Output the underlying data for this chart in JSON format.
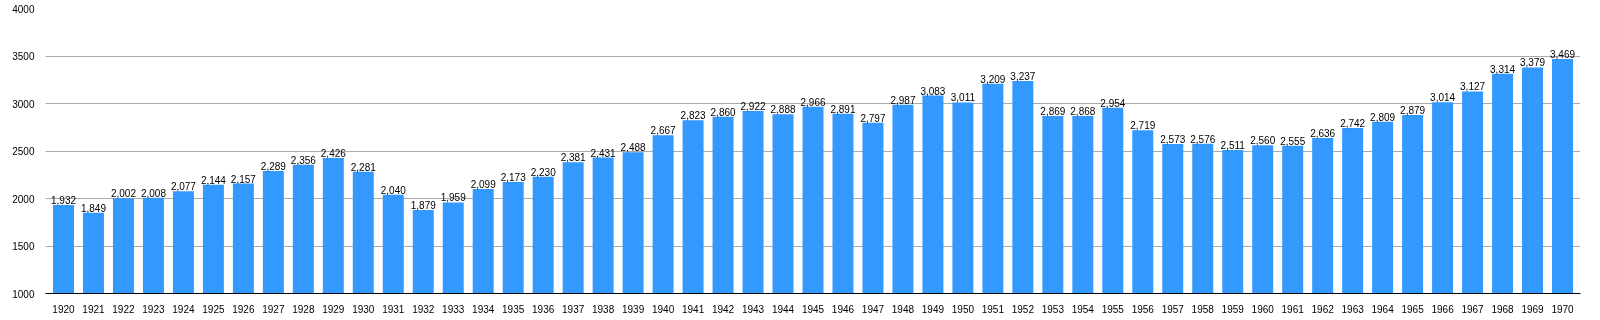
{
  "chart_data": {
    "type": "bar",
    "categories": [
      "1920",
      "1921",
      "1922",
      "1923",
      "1924",
      "1925",
      "1926",
      "1927",
      "1928",
      "1929",
      "1930",
      "1931",
      "1932",
      "1933",
      "1934",
      "1935",
      "1936",
      "1937",
      "1938",
      "1939",
      "1940",
      "1941",
      "1942",
      "1943",
      "1944",
      "1945",
      "1946",
      "1947",
      "1948",
      "1949",
      "1950",
      "1951",
      "1952",
      "1953",
      "1954",
      "1955",
      "1956",
      "1957",
      "1958",
      "1959",
      "1960",
      "1961",
      "1962",
      "1963",
      "1964",
      "1965",
      "1966",
      "1967",
      "1968",
      "1969",
      "1970"
    ],
    "values": [
      1932,
      1849,
      2002,
      2008,
      2077,
      2144,
      2157,
      2289,
      2356,
      2426,
      2281,
      2040,
      1879,
      1959,
      2099,
      2173,
      2230,
      2381,
      2431,
      2488,
      2667,
      2823,
      2860,
      2922,
      2888,
      2966,
      2891,
      2797,
      2987,
      3083,
      3011,
      3209,
      3237,
      2869,
      2868,
      2954,
      2719,
      2573,
      2576,
      2511,
      2560,
      2555,
      2636,
      2742,
      2809,
      2879,
      3014,
      3127,
      3314,
      3379,
      3469
    ],
    "value_labels": [
      "1,932",
      "1,849",
      "2,002",
      "2,008",
      "2,077",
      "2,144",
      "2,157",
      "2,289",
      "2,356",
      "2,426",
      "2,281",
      "2,040",
      "1,879",
      "1,959",
      "2,099",
      "2,173",
      "2,230",
      "2,381",
      "2,431",
      "2,488",
      "2,667",
      "2,823",
      "2,860",
      "2,922",
      "2,888",
      "2,966",
      "2,891",
      "2,797",
      "2,987",
      "3,083",
      "3,011",
      "3,209",
      "3,237",
      "2,869",
      "2,868",
      "2,954",
      "2,719",
      "2,573",
      "2,576",
      "2,511",
      "2,560",
      "2,555",
      "2,636",
      "2,742",
      "2,809",
      "2,879",
      "3,014",
      "3,127",
      "3,314",
      "3,379",
      "3,469"
    ],
    "color": "#3399ff",
    "ylim": [
      1000,
      4000
    ],
    "yticks": [
      1000,
      1500,
      2000,
      2500,
      3000,
      3500,
      4000
    ],
    "grid": "y"
  }
}
